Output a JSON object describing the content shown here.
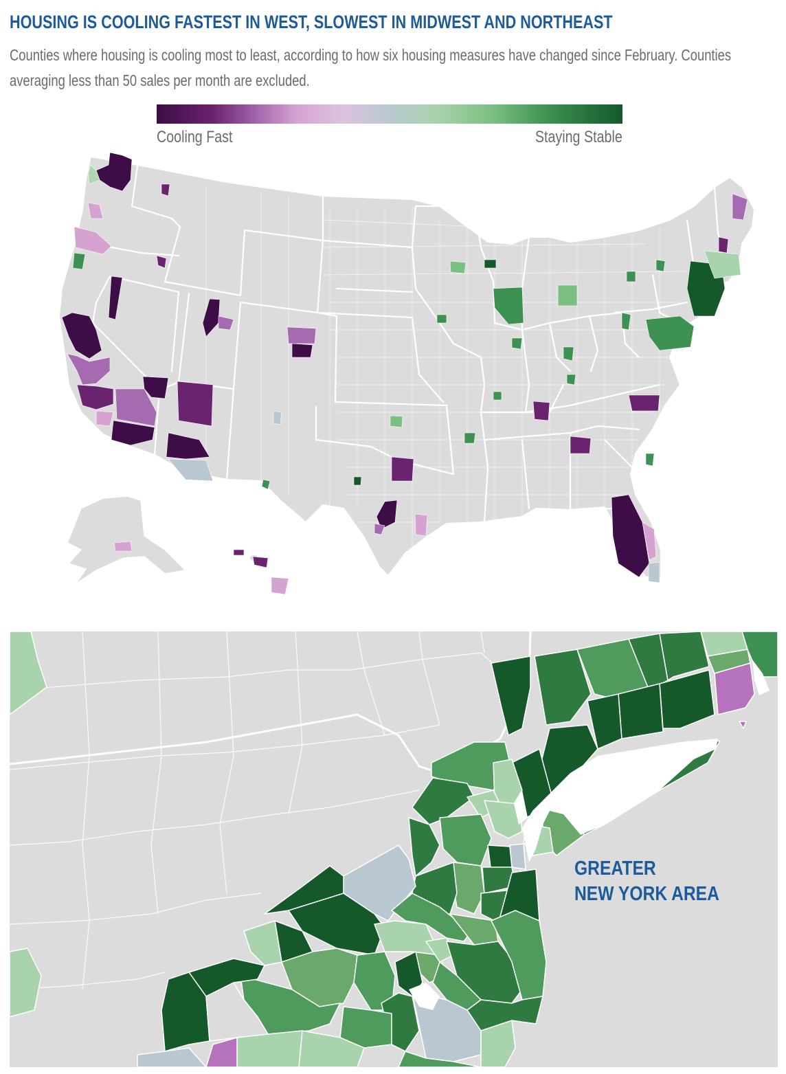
{
  "header": {
    "title": "HOUSING IS COOLING FASTEST IN WEST, SLOWEST IN MIDWEST AND NORTHEAST",
    "subtitle": "Counties where housing is cooling most to least, according to how six housing measures have changed since February. Counties averaging less than 50 sales per month are excluded."
  },
  "legend": {
    "left_label": "Cooling Fast",
    "right_label": "Staying Stable"
  },
  "inset": {
    "label_line1": "GREATER",
    "label_line2": "NEW YORK AREA"
  },
  "colors": {
    "title": "#1d5a9b",
    "text_gray": "#6b6b6b",
    "land": "#dcdcdc",
    "border": "#ffffff",
    "cooling_fast_dark": "#3e0c46",
    "cooling_fast": "#6a236f",
    "cooling_mid": "#a56ab0",
    "cooling_light": "#d6a2d2",
    "neutral": "#b9c8d0",
    "stable_light": "#a9d3ad",
    "stable_mid": "#3d9152",
    "stable_dark": "#15592b"
  }
}
